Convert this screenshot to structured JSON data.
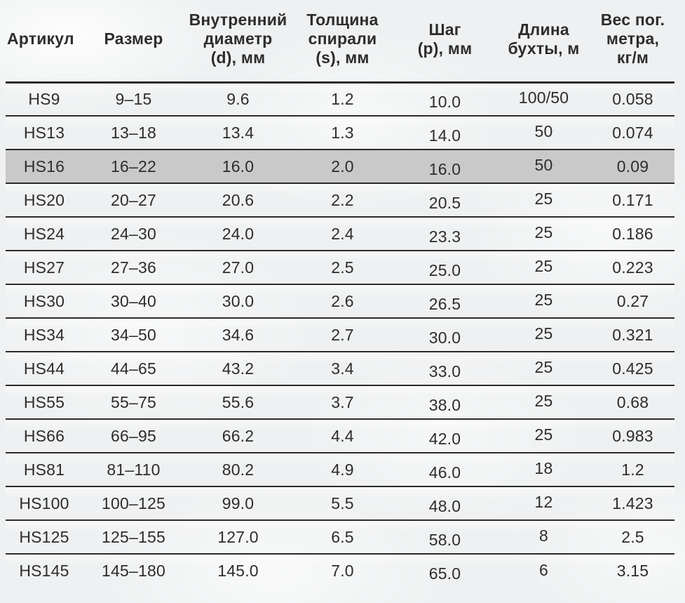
{
  "table": {
    "columns": [
      {
        "id": "article",
        "label": "Артикул"
      },
      {
        "id": "size",
        "label": "Размер"
      },
      {
        "id": "inner_diameter",
        "label": "Внутренний\nдиаметр\n(d), мм"
      },
      {
        "id": "spiral_thickness",
        "label": "Толщина\nспирали\n(s), мм"
      },
      {
        "id": "pitch",
        "label": "Шаг\n(p), мм"
      },
      {
        "id": "coil_length",
        "label": "Длина\nбухты, м"
      },
      {
        "id": "weight",
        "label": "Вес пог.\nметра,\nкг/м"
      }
    ],
    "rows": [
      [
        "HS9",
        "9–15",
        "9.6",
        "1.2",
        "10.0",
        "100/50",
        "0.058"
      ],
      [
        "HS13",
        "13–18",
        "13.4",
        "1.3",
        "14.0",
        "50",
        "0.074"
      ],
      [
        "HS16",
        "16–22",
        "16.0",
        "2.0",
        "16.0",
        "50",
        "0.09"
      ],
      [
        "HS20",
        "20–27",
        "20.6",
        "2.2",
        "20.5",
        "25",
        "0.171"
      ],
      [
        "HS24",
        "24–30",
        "24.0",
        "2.4",
        "23.3",
        "25",
        "0.186"
      ],
      [
        "HS27",
        "27–36",
        "27.0",
        "2.5",
        "25.0",
        "25",
        "0.223"
      ],
      [
        "HS30",
        "30–40",
        "30.0",
        "2.6",
        "26.5",
        "25",
        "0.27"
      ],
      [
        "HS34",
        "34–50",
        "34.6",
        "2.7",
        "30.0",
        "25",
        "0.321"
      ],
      [
        "HS44",
        "44–65",
        "43.2",
        "3.4",
        "33.0",
        "25",
        "0.425"
      ],
      [
        "HS55",
        "55–75",
        "55.6",
        "3.7",
        "38.0",
        "25",
        "0.68"
      ],
      [
        "HS66",
        "66–95",
        "66.2",
        "4.4",
        "42.0",
        "25",
        "0.983"
      ],
      [
        "HS81",
        "81–110",
        "80.2",
        "4.9",
        "46.0",
        "18",
        "1.2"
      ],
      [
        "HS100",
        "100–125",
        "99.0",
        "5.5",
        "48.0",
        "12",
        "1.423"
      ],
      [
        "HS125",
        "125–155",
        "127.0",
        "6.5",
        "58.0",
        "8",
        "2.5"
      ],
      [
        "HS145",
        "145–180",
        "145.0",
        "7.0",
        "65.0",
        "6",
        "3.15"
      ]
    ],
    "highlighted_row_index": 2
  },
  "colors": {
    "background": "#eef0f1",
    "row_highlight": "#c9c9ca",
    "separator_line": "#2b2b2b",
    "text": "#2d2d2d"
  }
}
